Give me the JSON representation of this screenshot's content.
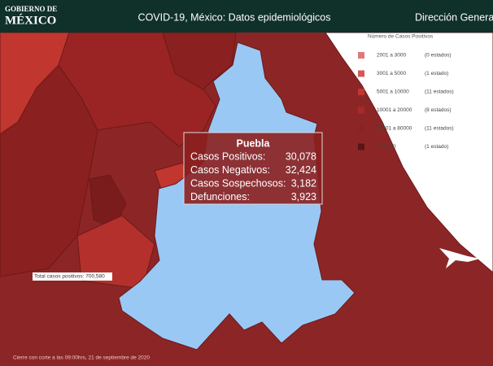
{
  "header": {
    "logo_top": "GOBIERNO DE",
    "logo_bottom": "MÉXICO",
    "title": "COVID-19, México: Datos epidemiológicos",
    "right": "Dirección General"
  },
  "legend": {
    "title": "Número de Casos Positivos",
    "rows": [
      {
        "range": "2001 a 3000",
        "count": "(0 estados)"
      },
      {
        "range": "3001 a 5000",
        "count": "(1 estado)"
      },
      {
        "range": "5001 a 10000",
        "count": "(11 estados)"
      },
      {
        "range": "10001 a 20000",
        "count": "(8 estados)"
      },
      {
        "range": "20001 a 80000",
        "count": "(11 estados)"
      },
      {
        "range": "> 80000",
        "count": "(1 estado)"
      }
    ]
  },
  "tooltip": {
    "state": "Puebla",
    "rows": [
      {
        "label": "Casos Positivos:",
        "value": "30,078"
      },
      {
        "label": "Casos Negativos:",
        "value": "32,424"
      },
      {
        "label": "Casos Sospechosos:",
        "value": "3,182"
      },
      {
        "label": "Defunciones:",
        "value": "3,923"
      }
    ]
  },
  "total": "Total casos positivos: 700,580",
  "footnote": "Cierre con corte a las 09:00hrs, 21 de septiembre de 2020"
}
